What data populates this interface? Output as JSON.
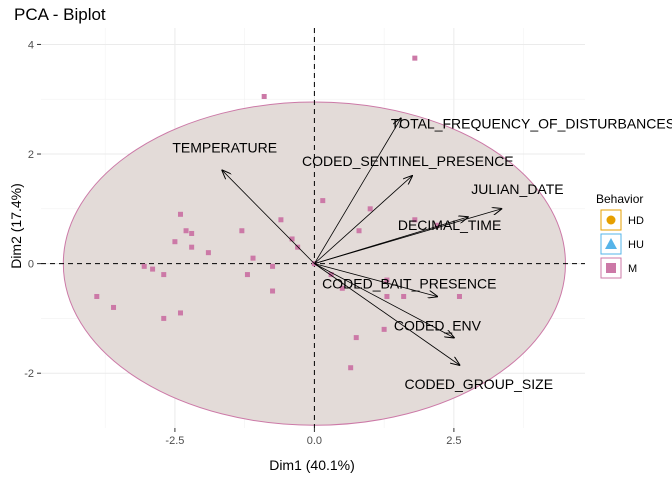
{
  "chart_data": {
    "type": "scatter",
    "title": "PCA - Biplot",
    "xlabel": "Dim1 (40.1%)",
    "ylabel": "Dim2 (17.4%)",
    "xlim": [
      -4.9,
      4.85
    ],
    "ylim": [
      -3.0,
      4.3
    ],
    "x_ticks": [
      -2.5,
      0.0,
      2.5
    ],
    "x_tick_labels": [
      "-2.5",
      "0.0",
      "2.5"
    ],
    "y_ticks": [
      -2,
      0,
      2,
      4
    ],
    "y_tick_labels": [
      "-2",
      "0",
      "2",
      "4"
    ],
    "grid": true,
    "legend": {
      "title": "Behavior",
      "position": "right",
      "entries": [
        {
          "label": "HD",
          "shape": "circle",
          "color": "#E69F00"
        },
        {
          "label": "HU",
          "shape": "triangle",
          "color": "#56B4E9"
        },
        {
          "label": "M",
          "shape": "square",
          "color": "#CC79A7"
        }
      ]
    },
    "ellipse": {
      "center": [
        0.0,
        0.0
      ],
      "rx": 4.5,
      "ry": 2.95,
      "fill": "#e3dbd8",
      "stroke": "#CC79A7"
    },
    "series": [
      {
        "name": "M",
        "color": "#CC79A7",
        "points": [
          [
            1.8,
            3.75
          ],
          [
            -0.9,
            3.05
          ],
          [
            0.15,
            1.15
          ],
          [
            0.8,
            0.6
          ],
          [
            1.0,
            1.0
          ],
          [
            -0.6,
            0.8
          ],
          [
            -2.4,
            0.9
          ],
          [
            -2.3,
            0.6
          ],
          [
            -2.2,
            0.55
          ],
          [
            -1.3,
            0.6
          ],
          [
            -2.5,
            0.4
          ],
          [
            -2.2,
            0.3
          ],
          [
            -1.9,
            0.2
          ],
          [
            -0.4,
            0.45
          ],
          [
            -0.3,
            0.3
          ],
          [
            -1.1,
            0.1
          ],
          [
            -1.2,
            -0.2
          ],
          [
            -0.75,
            -0.05
          ],
          [
            -3.05,
            -0.05
          ],
          [
            -2.9,
            -0.1
          ],
          [
            -2.7,
            -0.2
          ],
          [
            -3.9,
            -0.6
          ],
          [
            -3.6,
            -0.8
          ],
          [
            -2.4,
            -0.9
          ],
          [
            -2.7,
            -1.0
          ],
          [
            -0.75,
            -0.5
          ],
          [
            0.3,
            -0.2
          ],
          [
            0.0,
            0.0
          ],
          [
            0.5,
            -0.45
          ],
          [
            1.3,
            -0.3
          ],
          [
            1.25,
            -1.2
          ],
          [
            0.75,
            -1.35
          ],
          [
            0.65,
            -1.9
          ],
          [
            1.3,
            -0.6
          ],
          [
            2.6,
            -0.6
          ],
          [
            1.8,
            0.8
          ],
          [
            2.2,
            0.7
          ],
          [
            1.6,
            -0.6
          ]
        ]
      }
    ],
    "variables": [
      {
        "name": "TOTAL_FREQUENCY_OF_DISTURBANCES",
        "x": 1.55,
        "y": 2.65
      },
      {
        "name": "TEMPERATURE",
        "x": -1.65,
        "y": 1.7
      },
      {
        "name": "CODED_SENTINEL_PRESENCE",
        "x": 1.75,
        "y": 1.6
      },
      {
        "name": "JULIAN_DATE",
        "x": 3.35,
        "y": 1.0
      },
      {
        "name": "DECIMAL_TIME",
        "x": 2.75,
        "y": 0.85
      },
      {
        "name": "CODED_BAIT_PRESENCE",
        "x": 2.2,
        "y": -0.6
      },
      {
        "name": "CODED_ENV",
        "x": 2.5,
        "y": -1.35
      },
      {
        "name": "CODED_GROUP_SIZE",
        "x": 2.6,
        "y": -1.85
      }
    ]
  }
}
